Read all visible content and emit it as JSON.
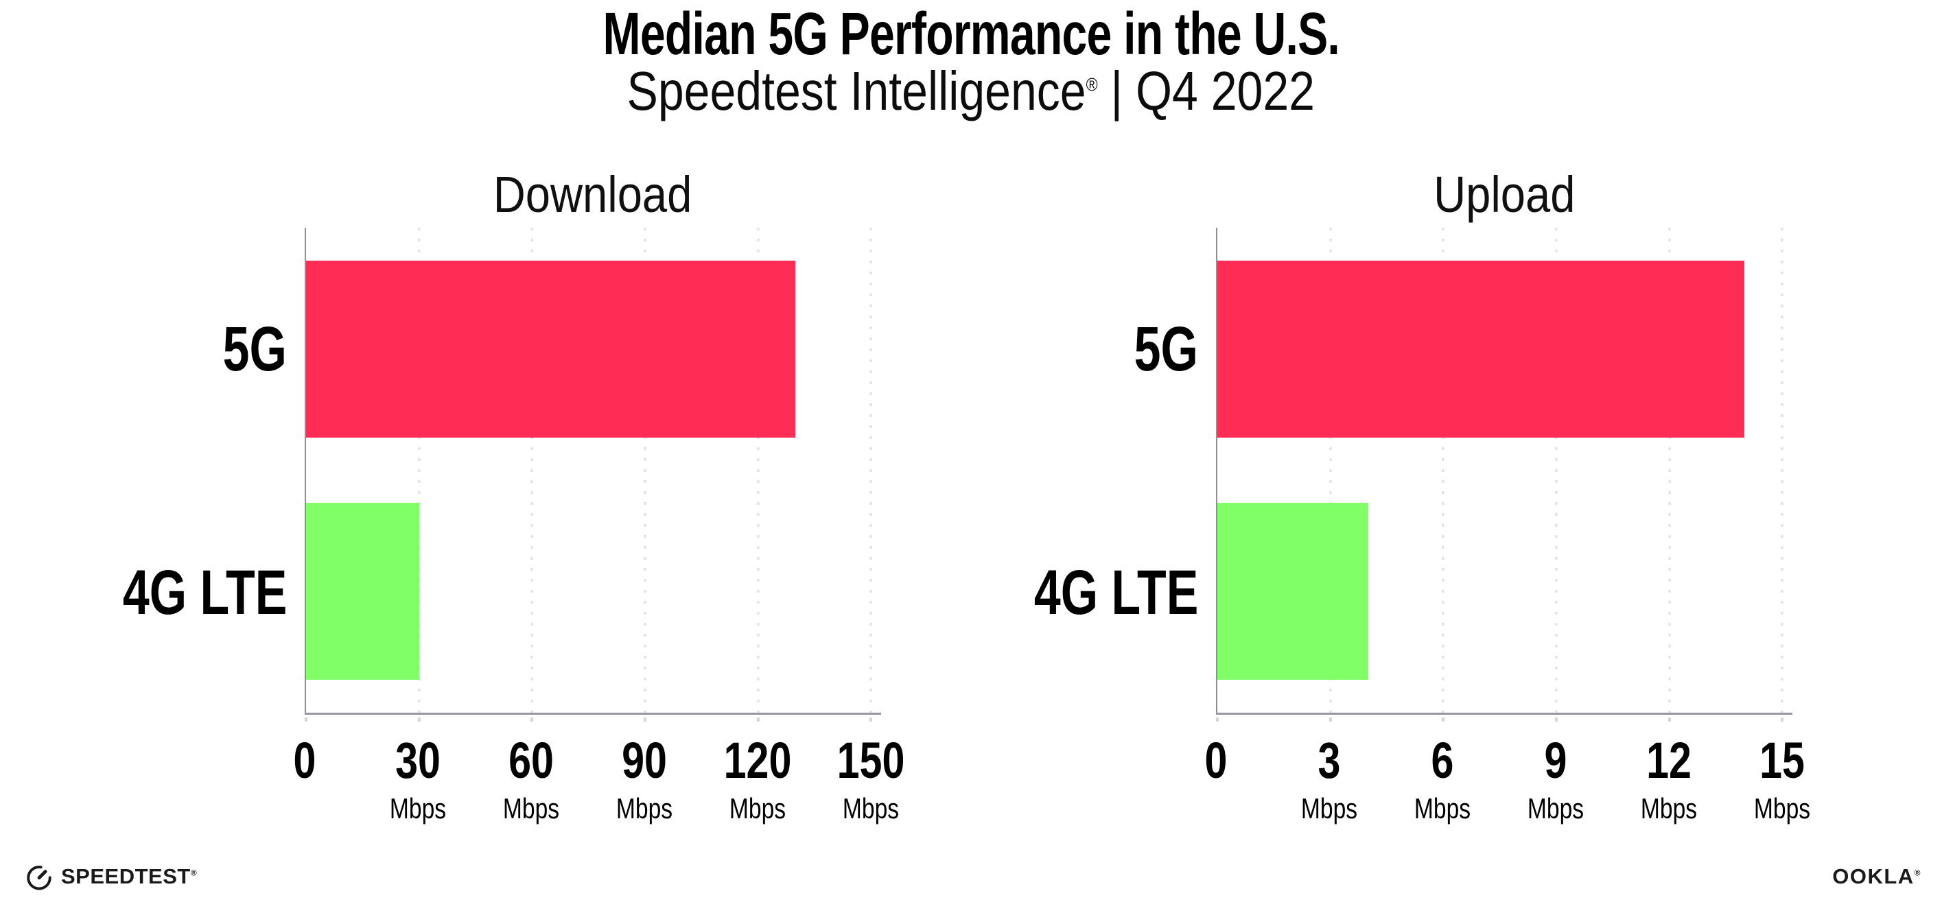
{
  "header": {
    "title": "Median 5G Performance in the U.S.",
    "subtitle_brand": "Speedtest Intelligence",
    "subtitle_reg": "®",
    "subtitle_rest": " | Q4 2022"
  },
  "chart_data": [
    {
      "type": "bar",
      "orientation": "horizontal",
      "title": "Download",
      "categories": [
        "5G",
        "4G LTE"
      ],
      "values": [
        130,
        30
      ],
      "unit": "Mbps",
      "bar_colors": [
        "#FF2D55",
        "#80FF66"
      ],
      "ticks": [
        0,
        30,
        60,
        90,
        120,
        150
      ],
      "xlim": [
        0,
        152.7
      ],
      "grid": "dotted-vertical"
    },
    {
      "type": "bar",
      "orientation": "horizontal",
      "title": "Upload",
      "categories": [
        "5G",
        "4G LTE"
      ],
      "values": [
        14,
        4
      ],
      "unit": "Mbps",
      "bar_colors": [
        "#FF2D55",
        "#80FF66"
      ],
      "ticks": [
        0,
        3,
        6,
        9,
        12,
        15
      ],
      "xlim": [
        0,
        15.27
      ],
      "grid": "dotted-vertical"
    }
  ],
  "colors": {
    "bar_5g": "#FF2D55",
    "bar_4g_lte": "#80FF66",
    "gridline": "#DEDEE9",
    "axis": "#8E8E96",
    "text": "#000000"
  },
  "footer": {
    "left_brand": "SPEEDTEST",
    "left_reg": "®",
    "left_icon": "speedtest-gauge-icon",
    "right_brand": "OOKLA",
    "right_reg": "®"
  }
}
